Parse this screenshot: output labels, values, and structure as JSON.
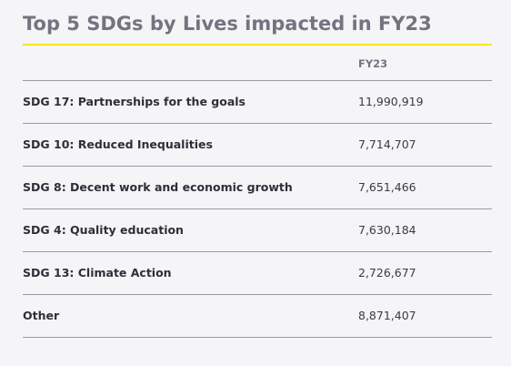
{
  "title": "Top 5 SDGs by Lives impacted in FY23",
  "accent_color": "#ffe600",
  "table": {
    "headers": [
      "",
      "FY23"
    ],
    "rows": [
      {
        "label": "SDG 17: Partnerships for the goals",
        "value": "11,990,919"
      },
      {
        "label": "SDG 10: Reduced Inequalities",
        "value": "7,714,707"
      },
      {
        "label": "SDG 8: Decent work and economic growth",
        "value": "7,651,466"
      },
      {
        "label": "SDG 4: Quality education",
        "value": "7,630,184"
      },
      {
        "label": "SDG 13: Climate Action",
        "value": "2,726,677"
      },
      {
        "label": "Other",
        "value": "8,871,407"
      }
    ]
  }
}
